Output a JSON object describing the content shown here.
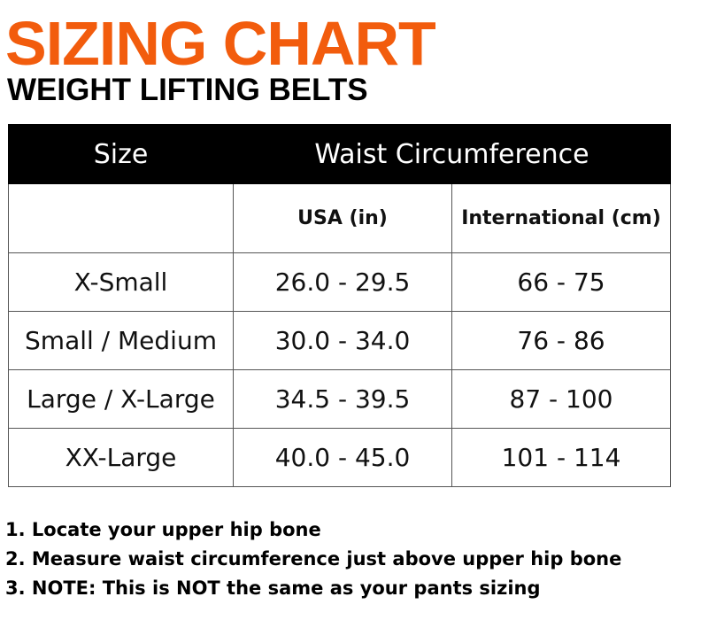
{
  "header": {
    "title": "SIZING CHART",
    "subtitle": "WEIGHT LIFTING BELTS"
  },
  "table": {
    "header": [
      "Size",
      "Waist Circumference"
    ],
    "subheader": [
      "USA (in)",
      "International (cm)"
    ],
    "rows": [
      [
        "X-Small",
        "26.0 - 29.5",
        "66 - 75"
      ],
      [
        "Small / Medium",
        "30.0 - 34.0",
        "76 - 86"
      ],
      [
        "Large / X-Large",
        "34.5 - 39.5",
        "87 - 100"
      ],
      [
        "XX-Large",
        "40.0 - 45.0",
        "101 - 114"
      ]
    ]
  },
  "notes": [
    "1. Locate your upper hip bone",
    "2. Measure waist circumference just above upper hip bone",
    "3. NOTE: This is NOT the same as your pants sizing"
  ]
}
